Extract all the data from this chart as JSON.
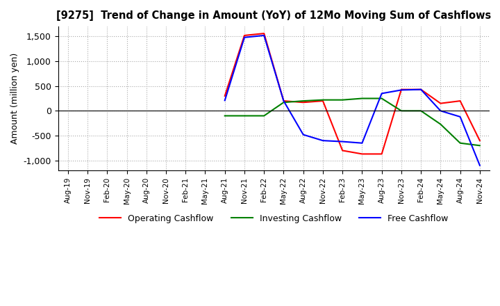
{
  "title": "[9275]  Trend of Change in Amount (YoY) of 12Mo Moving Sum of Cashflows",
  "ylabel": "Amount (million yen)",
  "ylim": [
    -1200,
    1700
  ],
  "yticks": [
    -1000,
    -500,
    0,
    500,
    1000,
    1500
  ],
  "x_labels": [
    "Aug-19",
    "Nov-19",
    "Feb-20",
    "May-20",
    "Aug-20",
    "Nov-20",
    "Feb-21",
    "May-21",
    "Aug-21",
    "Nov-21",
    "Feb-22",
    "May-22",
    "Aug-22",
    "Nov-22",
    "Feb-23",
    "May-23",
    "Aug-23",
    "Nov-23",
    "Feb-24",
    "May-24",
    "Aug-24",
    "Nov-24"
  ],
  "operating_color": "#ff0000",
  "investing_color": "#008000",
  "free_color": "#0000ff",
  "background_color": "#ffffff",
  "grid_color": "#aaaaaa",
  "operating": [
    null,
    null,
    null,
    null,
    null,
    null,
    null,
    null,
    300,
    1520,
    1560,
    200,
    170,
    200,
    -800,
    -870,
    -870,
    430,
    430,
    150,
    200,
    -600
  ],
  "investing": [
    null,
    null,
    null,
    null,
    null,
    null,
    null,
    null,
    -100,
    -100,
    -100,
    170,
    200,
    220,
    220,
    250,
    250,
    0,
    0,
    -270,
    -650,
    -700
  ],
  "free": [
    null,
    null,
    null,
    null,
    null,
    null,
    null,
    null,
    210,
    1480,
    1520,
    200,
    -480,
    -600,
    -620,
    -650,
    350,
    420,
    430,
    0,
    -120,
    -1100
  ]
}
